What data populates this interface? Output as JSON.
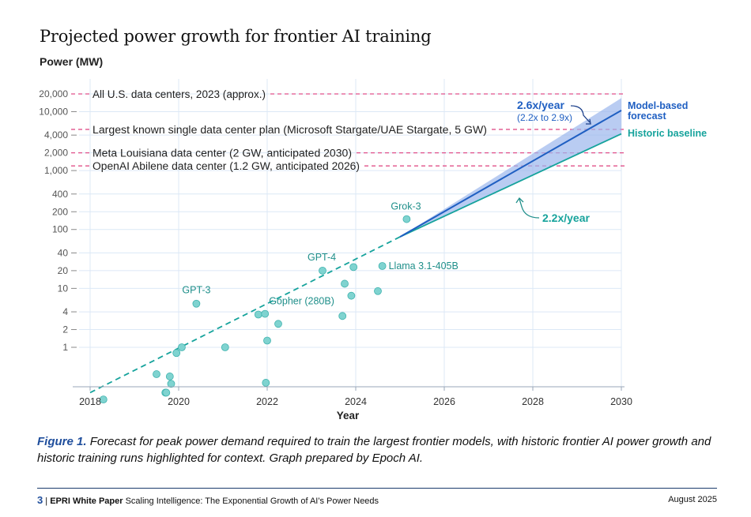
{
  "header": {
    "title": "Projected power growth for frontier AI training",
    "y_axis_label": "Power (MW)"
  },
  "caption": {
    "figure_label": "Figure 1.",
    "text": "Forecast for peak power demand required to train the largest frontier models, with historic frontier AI power growth and historic training runs highlighted for context. Graph prepared by Epoch AI."
  },
  "footer": {
    "page_number": "3",
    "separator": "|",
    "publication": "EPRI White Paper",
    "doc_title": "Scaling Intelligence: The Exponential Growth of AI's Power Needs",
    "date": "August 2025"
  },
  "colors": {
    "teal": "#16a39c",
    "teal_point": "#7fd3d0",
    "blue": "#1f5fc2",
    "band": "#9bb6ec",
    "pink": "#e0508a",
    "grid": "#dce8f6"
  },
  "chart_data": {
    "type": "scatter",
    "xlabel": "Year",
    "ylabel": "Power (MW)",
    "x_scale": "linear",
    "y_scale": "log",
    "xlim": [
      2017.6,
      2030.1
    ],
    "ylim": [
      0.12,
      25000
    ],
    "grid": true,
    "x_ticks": [
      2018,
      2020,
      2022,
      2024,
      2026,
      2028,
      2030
    ],
    "y_ticks": [
      {
        "value": 1,
        "label": "1"
      },
      {
        "value": 2,
        "label": "2"
      },
      {
        "value": 4,
        "label": "4"
      },
      {
        "value": 10,
        "label": "10"
      },
      {
        "value": 20,
        "label": "20"
      },
      {
        "value": 40,
        "label": "40"
      },
      {
        "value": 100,
        "label": "100"
      },
      {
        "value": 200,
        "label": "200"
      },
      {
        "value": 400,
        "label": "400"
      },
      {
        "value": 1000,
        "label": "1,000"
      },
      {
        "value": 2000,
        "label": "2,000"
      },
      {
        "value": 4000,
        "label": "4,000"
      },
      {
        "value": 10000,
        "label": "10,000"
      },
      {
        "value": 20000,
        "label": "20,000"
      }
    ],
    "reference_lines": [
      {
        "value": 20000,
        "label": "All U.S. data centers, 2023 (approx.)"
      },
      {
        "value": 5000,
        "label": "Largest known single data center plan (Microsoft Stargate/UAE Stargate, 5 GW)"
      },
      {
        "value": 2000,
        "label": "Meta Louisiana data center (2 GW, anticipated 2030)"
      },
      {
        "value": 1200,
        "label": "OpenAI Abilene data center (1.2 GW, anticipated 2026)"
      }
    ],
    "points": [
      {
        "x": 2018.3,
        "y": 0.13,
        "label": ""
      },
      {
        "x": 2019.5,
        "y": 0.35,
        "label": ""
      },
      {
        "x": 2019.7,
        "y": 0.17,
        "label": ""
      },
      {
        "x": 2019.72,
        "y": 0.17,
        "label": ""
      },
      {
        "x": 2019.8,
        "y": 0.32,
        "label": ""
      },
      {
        "x": 2019.83,
        "y": 0.24,
        "label": ""
      },
      {
        "x": 2019.95,
        "y": 0.8,
        "label": ""
      },
      {
        "x": 2020.07,
        "y": 1.0,
        "label": ""
      },
      {
        "x": 2020.4,
        "y": 5.5,
        "label": "GPT-3"
      },
      {
        "x": 2021.05,
        "y": 1.0,
        "label": ""
      },
      {
        "x": 2021.8,
        "y": 3.6,
        "label": ""
      },
      {
        "x": 2021.95,
        "y": 3.7,
        "label": "Gopher (280B)"
      },
      {
        "x": 2021.97,
        "y": 0.25,
        "label": ""
      },
      {
        "x": 2022.0,
        "y": 1.3,
        "label": ""
      },
      {
        "x": 2022.25,
        "y": 2.5,
        "label": ""
      },
      {
        "x": 2023.25,
        "y": 20,
        "label": "GPT-4"
      },
      {
        "x": 2023.7,
        "y": 3.4,
        "label": ""
      },
      {
        "x": 2023.75,
        "y": 12,
        "label": ""
      },
      {
        "x": 2023.9,
        "y": 7.5,
        "label": ""
      },
      {
        "x": 2023.95,
        "y": 23,
        "label": ""
      },
      {
        "x": 2024.5,
        "y": 9,
        "label": ""
      },
      {
        "x": 2024.6,
        "y": 24,
        "label": "Llama 3.1-405B"
      },
      {
        "x": 2025.15,
        "y": 150,
        "label": "Grok-3"
      }
    ],
    "series": [
      {
        "name": "Historic baseline",
        "x": [
          2018,
          2025,
          2030
        ],
        "y": [
          0.17,
          75,
          4200
        ]
      },
      {
        "name": "Model-based forecast",
        "x": [
          2025,
          2030
        ],
        "y": [
          75,
          10500
        ]
      }
    ],
    "forecast_band": {
      "x": [
        2025,
        2030
      ],
      "lower": [
        75,
        4200
      ],
      "upper": [
        75,
        17000
      ]
    },
    "annotations": [
      {
        "label": "2.6x/year",
        "sublabel": "(2.2x to 2.9x)"
      },
      {
        "label": "2.2x/year"
      }
    ]
  }
}
